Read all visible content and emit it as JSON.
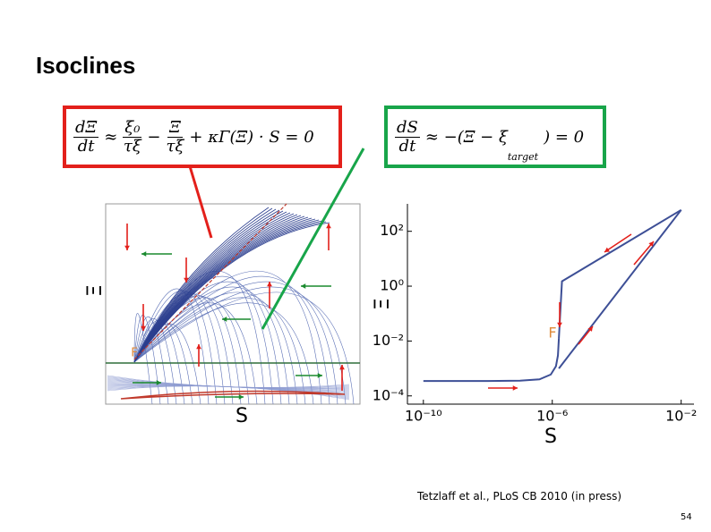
{
  "title": "Isoclines",
  "equations": [
    {
      "parts": [
        {
          "num": "dΞ",
          "den": "dt"
        },
        "≈",
        {
          "num": "ξ₀",
          "den": "τξ"
        },
        "−",
        {
          "num": "Ξ",
          "den": "τξ"
        },
        "+ κΓ(Ξ) · S = 0"
      ]
    },
    {
      "parts": [
        {
          "num": "dS",
          "den": "dt"
        },
        "≈ −(Ξ − ξ",
        {
          "sub": "target"
        },
        ") = 0"
      ]
    }
  ],
  "phase_plot": {
    "xlabel": "S",
    "ylabel": "Ξ",
    "marker": "F"
  },
  "chart_data": {
    "type": "line",
    "xlabel": "S",
    "ylabel": "Ξ",
    "annotation": "F",
    "xscale": "log",
    "yscale": "log",
    "xlim": [
      3.2e-11,
      0.025
    ],
    "ylim": [
      5e-05,
      1000
    ],
    "xticks": [
      {
        "value": 1e-10,
        "label": "10⁻¹⁰"
      },
      {
        "value": 1e-06,
        "label": "10⁻⁶"
      },
      {
        "value": 0.01,
        "label": "10⁻²"
      }
    ],
    "yticks": [
      {
        "value": 100,
        "label": "10²"
      },
      {
        "value": 1,
        "label": "10⁰"
      },
      {
        "value": 0.01,
        "label": "10⁻²"
      },
      {
        "value": 0.0001,
        "label": "10⁻⁴"
      }
    ],
    "series": [
      {
        "color": "#3d4f96",
        "x": [
          1e-10,
          1e-08,
          1e-07,
          4e-07,
          9e-07,
          1.3e-06,
          1.5e-06,
          1.6e-06
        ],
        "y": [
          0.00035,
          0.00035,
          0.00036,
          0.0004,
          0.0006,
          0.0012,
          0.003,
          0.012
        ]
      },
      {
        "color": "#3d4f96",
        "x": [
          1.6e-06,
          2e-06,
          0.01
        ],
        "y": [
          0.012,
          1.5,
          600
        ]
      },
      {
        "color": "#3d4f96",
        "x": [
          1.6e-06,
          0.01
        ],
        "y": [
          0.001,
          600
        ]
      }
    ]
  },
  "citation": "Tetzlaff et al., PLoS CB 2010 (in press)",
  "page_number": "54"
}
